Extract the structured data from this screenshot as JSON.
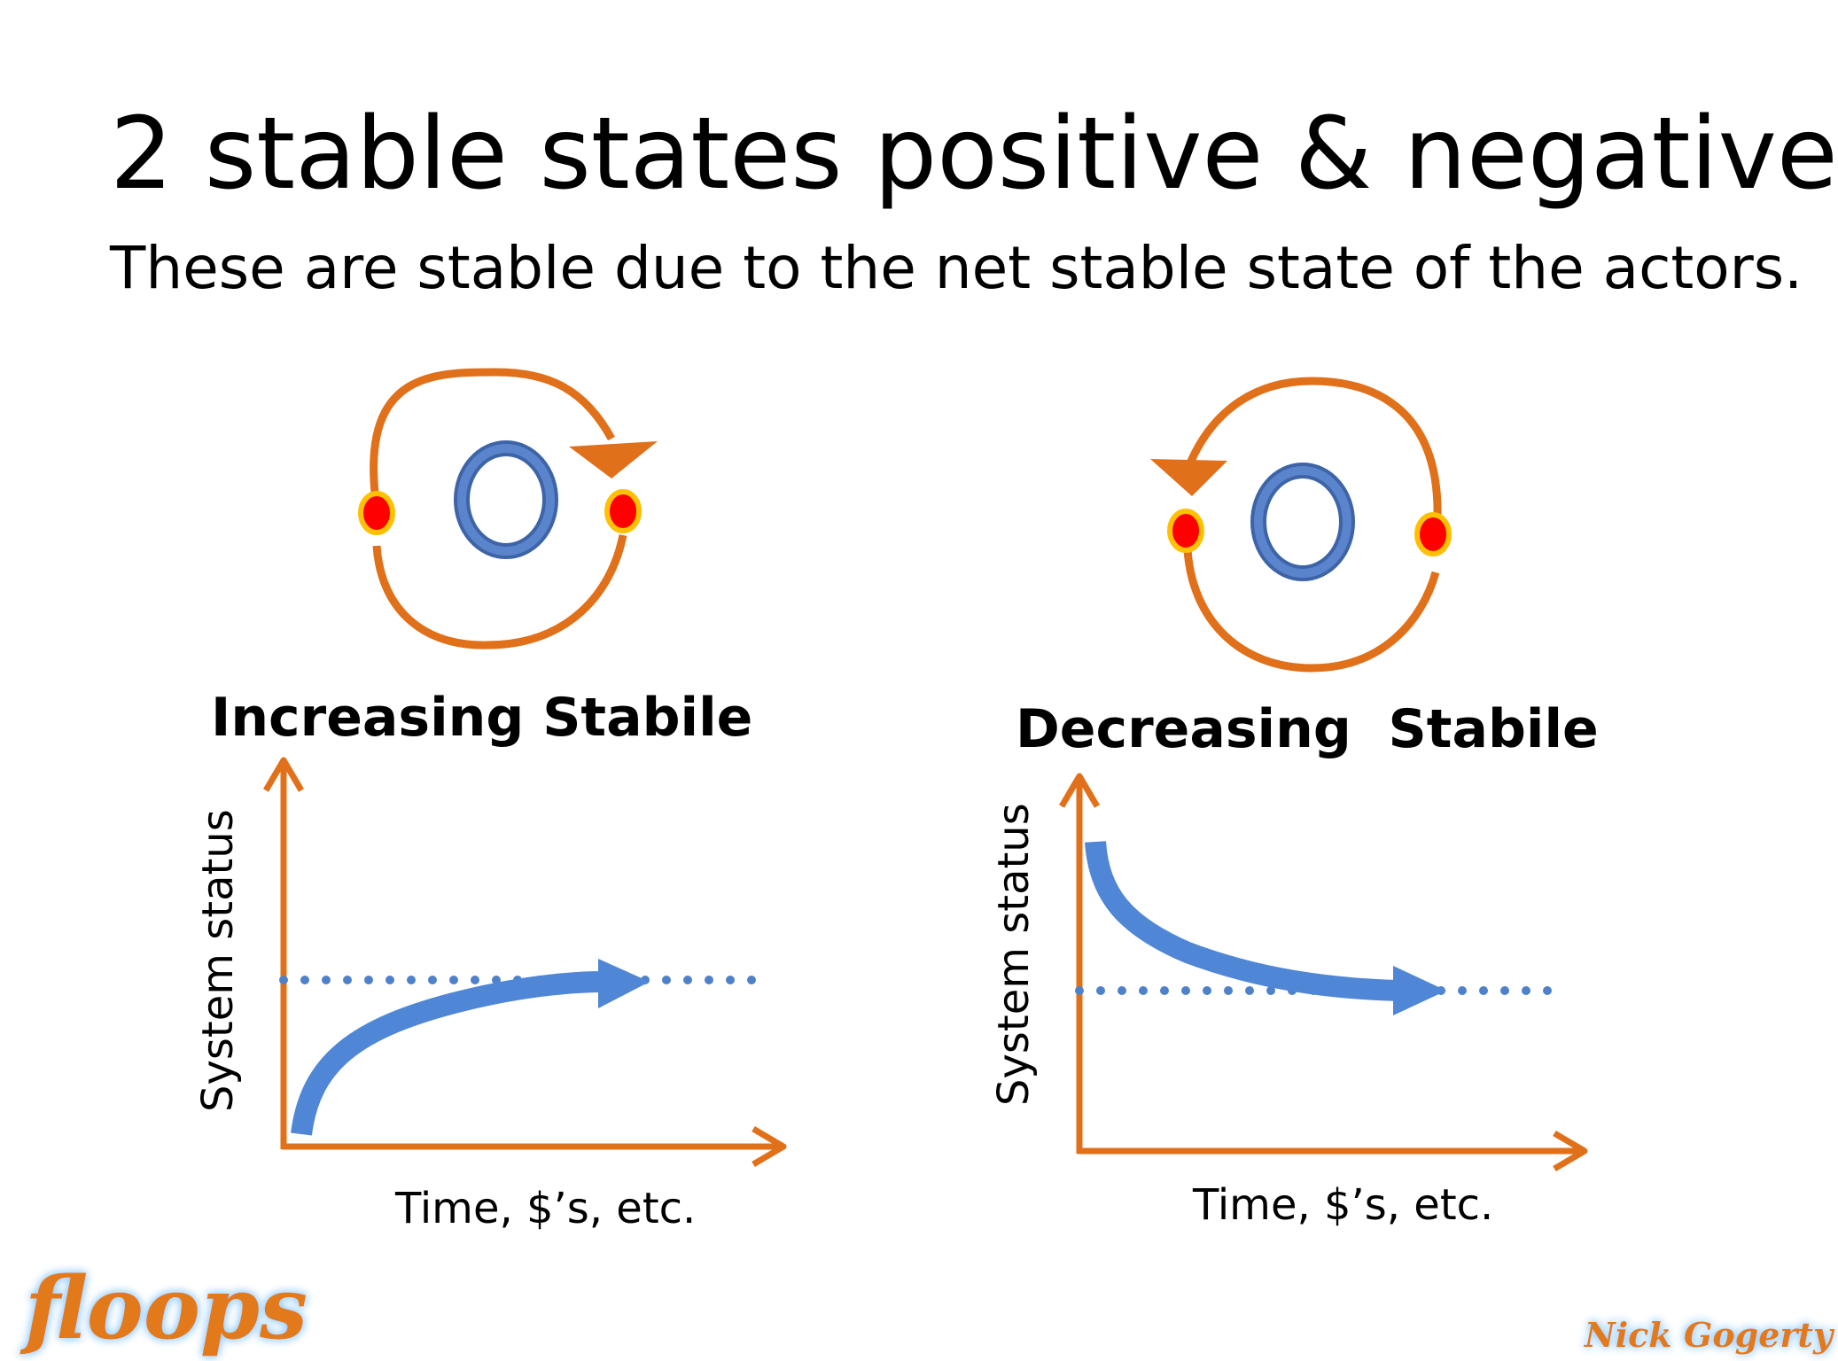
{
  "title": "2 stable states positive & negative",
  "subtitle": "These are stable due to the net stable state of the actors.",
  "diagrams": [
    {
      "label": "Increasing Stabile",
      "y_axis_label": "System status",
      "x_axis_label": "Time, $’s,  etc.",
      "loop_direction": "clockwise",
      "curve_trend": "rising toward stable level"
    },
    {
      "label": "Decreasing  Stabile",
      "y_axis_label": "System status",
      "x_axis_label": "Time, $’s,  etc.",
      "loop_direction": "counter-clockwise",
      "curve_trend": "falling toward stable level"
    }
  ],
  "logos": {
    "left": "floops",
    "right": "Nick Gogerty"
  },
  "colors": {
    "axis": "#e0701a",
    "curve": "#4f86d6",
    "dots": "#4f81c9",
    "node_fill": "#ff0000",
    "node_border": "#ffc000",
    "ring": "#3e64a8",
    "loop": "#e0701a"
  }
}
